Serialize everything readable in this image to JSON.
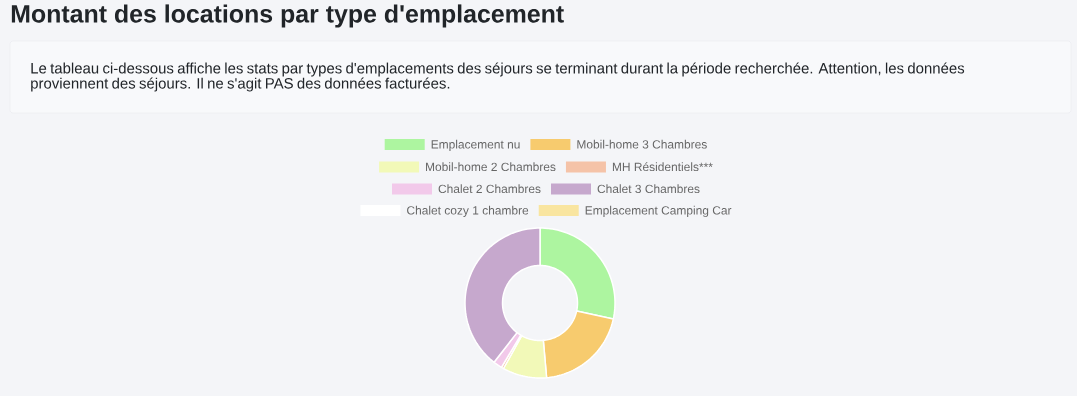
{
  "chart_data": {
    "type": "donut",
    "title": "Montant des locations par type d'emplacement",
    "subtitle": "Le tableau ci-dessous affiche les stats par types d'emplacements des séjours se terminant durant la période recherchée. Attention, les données proviennent des séjours. Il ne s'agit PAS des données facturées.",
    "categories": [
      "Emplacement nu",
      "Mobil-home 3 Chambres",
      "Mobil-home 2 Chambres",
      "MH Résidentiels***",
      "Chalet 2 Chambres",
      "Chalet 3 Chambres",
      "Chalet cozy 1 chambre",
      "Emplacement Camping Car"
    ],
    "values": [
      28.4,
      20.2,
      9.5,
      0.5,
      1.9,
      39.5,
      0,
      0
    ],
    "colors": [
      "#adf5a0",
      "#f7cb6e",
      "#f2f9b8",
      "#f5c3a8",
      "#f2c9ea",
      "#c6a8cd",
      "#ffffff",
      "#f9e5a0"
    ],
    "legend": "top"
  }
}
